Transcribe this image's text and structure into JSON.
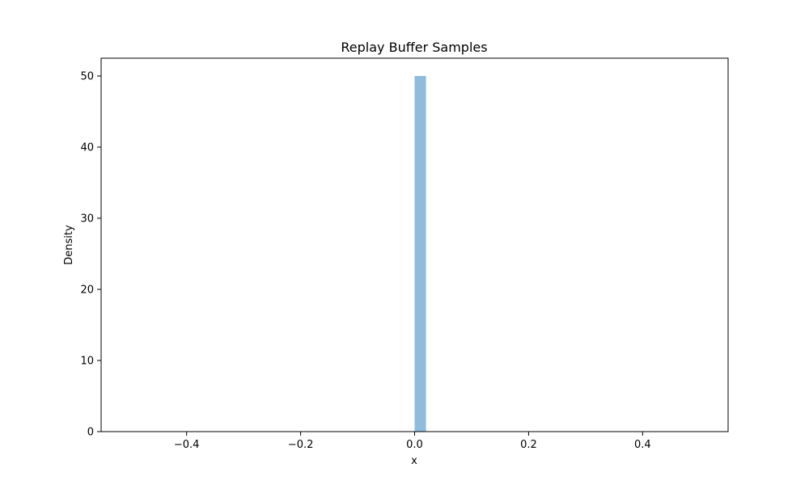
{
  "chart_data": {
    "type": "bar",
    "title": "Replay Buffer Samples",
    "xlabel": "x",
    "ylabel": "Density",
    "xlim": [
      -0.55,
      0.55
    ],
    "ylim": [
      0,
      52.5
    ],
    "xticks": [
      -0.4,
      -0.2,
      0.0,
      0.2,
      0.4
    ],
    "xtick_labels": [
      "−0.4",
      "−0.2",
      "0.0",
      "0.2",
      "0.4"
    ],
    "yticks": [
      0,
      10,
      20,
      30,
      40,
      50
    ],
    "ytick_labels": [
      "0",
      "10",
      "20",
      "30",
      "40",
      "50"
    ],
    "bins": [
      {
        "x0": 0.0,
        "x1": 0.02,
        "value": 50
      }
    ],
    "bar_color": "#8fbbdc",
    "grid": false,
    "legend": "none"
  }
}
